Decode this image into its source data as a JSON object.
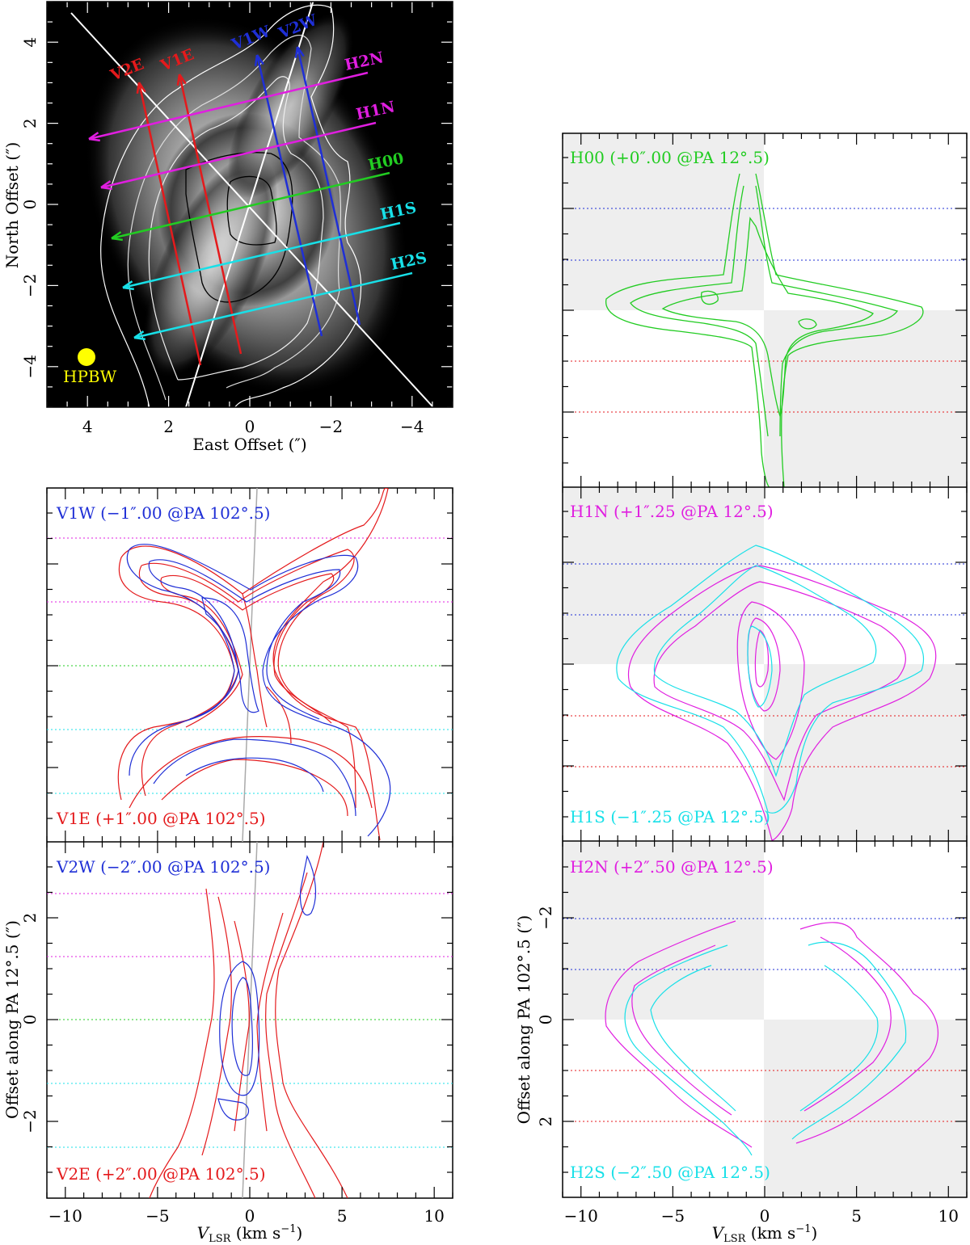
{
  "colors": {
    "red": "#e41a1c",
    "blue": "#1f2fd6",
    "magenta": "#e01ee0",
    "green": "#22cc22",
    "cyan": "#18e0e8",
    "yellow": "#ffff00",
    "shade": "#eeeeee"
  },
  "chart_data": [
    {
      "type": "heatmap",
      "panel": "map",
      "xlabel": "East Offset (″)",
      "ylabel": "North Offset (″)",
      "xlim": [
        5,
        -5
      ],
      "ylim": [
        -5,
        5
      ],
      "xticks": [
        "4",
        "2",
        "0",
        "−2",
        "−4"
      ],
      "yticks": [
        "−4",
        "−2",
        "0",
        "2",
        "4"
      ],
      "beam_label": "HPBW",
      "cuts": [
        {
          "name": "V2E",
          "color": "red"
        },
        {
          "name": "V1E",
          "color": "red"
        },
        {
          "name": "V1W",
          "color": "blue"
        },
        {
          "name": "V2W",
          "color": "blue"
        },
        {
          "name": "H2N",
          "color": "magenta"
        },
        {
          "name": "H1N",
          "color": "magenta"
        },
        {
          "name": "H00",
          "color": "green"
        },
        {
          "name": "H1S",
          "color": "cyan"
        },
        {
          "name": "H2S",
          "color": "cyan"
        }
      ]
    },
    {
      "type": "line",
      "panel": "pv-vertical",
      "xlabel": "V_LSR (km s^−1)",
      "ylabel": "Offset along PA 12.5 (″)",
      "xlim": [
        -11,
        11
      ],
      "xticks": [
        "−10",
        "−5",
        "0",
        "5",
        "10"
      ],
      "yticks": [
        "−2",
        "0",
        "2"
      ],
      "subpanels": [
        {
          "top_label": "V1W (−1″.00 @PA 102°.5)",
          "bottom_label": "V1E (+1″.00 @PA 102°.5)"
        },
        {
          "top_label": "V2W (−2″.00 @PA 102°.5)",
          "bottom_label": "V2E (+2″.00 @PA 102°.5)"
        }
      ]
    },
    {
      "type": "line",
      "panel": "pv-horizontal",
      "xlabel": "V_LSR (km s^−1)",
      "ylabel": "Offset along PA 102.5 (″)",
      "xlim": [
        -11,
        11
      ],
      "xticks": [
        "−10",
        "−5",
        "0",
        "5",
        "10"
      ],
      "yticks": [
        "−2",
        "0",
        "2"
      ],
      "subpanels": [
        {
          "top_label": "H00 (+0″.00 @PA 12°.5)",
          "bottom_label": ""
        },
        {
          "top_label": "H1N (+1″.25 @PA 12°.5)",
          "bottom_label": "H1S (−1″.25 @PA 12°.5)"
        },
        {
          "top_label": "H2N (+2″.50 @PA 12°.5)",
          "bottom_label": "H2S (−2″.50 @PA 12°.5)"
        }
      ]
    }
  ]
}
